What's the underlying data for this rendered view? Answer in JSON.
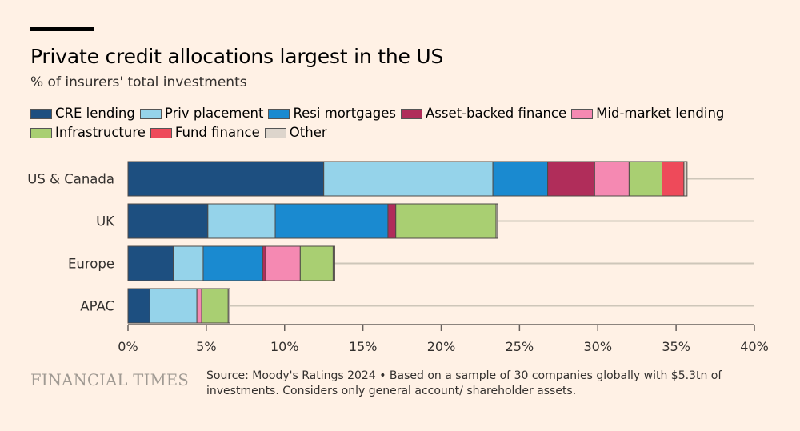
{
  "header": {
    "title": "Private credit allocations largest in the US",
    "subtitle": "% of insurers' total investments"
  },
  "footer": {
    "brand": "FINANCIAL TIMES",
    "source_prefix": "Source: ",
    "source_link": "Moody's Ratings 2024",
    "source_rest": " • Based on a sample of 30 companies globally with $5.3tn of investments. Considers only general account/ shareholder assets."
  },
  "chart_data": {
    "type": "bar",
    "orientation": "horizontal",
    "stacked": true,
    "title": "Private credit allocations largest in the US",
    "subtitle": "% of insurers' total investments",
    "categories": [
      "US & Canada",
      "UK",
      "Europe",
      "APAC"
    ],
    "series": [
      {
        "name": "CRE lending",
        "color": "#1d4f80",
        "values": [
          12.5,
          5.1,
          2.9,
          1.4
        ]
      },
      {
        "name": "Priv placement",
        "color": "#95d3ea",
        "values": [
          10.8,
          4.3,
          1.9,
          3.0
        ]
      },
      {
        "name": "Resi mortgages",
        "color": "#1a8ad0",
        "values": [
          3.5,
          7.2,
          3.8,
          0.0
        ]
      },
      {
        "name": "Asset-backed finance",
        "color": "#b02d5a",
        "values": [
          3.0,
          0.5,
          0.2,
          0.0
        ]
      },
      {
        "name": "Mid-market lending",
        "color": "#f589b2",
        "values": [
          2.2,
          0.0,
          2.2,
          0.3
        ]
      },
      {
        "name": "Infrastructure",
        "color": "#a9cf72",
        "values": [
          2.1,
          6.4,
          2.1,
          1.7
        ]
      },
      {
        "name": "Fund finance",
        "color": "#ee4a5a",
        "values": [
          1.4,
          0.0,
          0.0,
          0.0
        ]
      },
      {
        "name": "Other",
        "color": "#ddd5cc",
        "values": [
          0.2,
          0.1,
          0.1,
          0.1
        ]
      }
    ],
    "xlim": [
      0,
      40
    ],
    "xticks": [
      0,
      5,
      10,
      15,
      20,
      25,
      30,
      35,
      40
    ],
    "xtick_labels": [
      "0%",
      "5%",
      "10%",
      "15%",
      "20%",
      "25%",
      "30%",
      "35%",
      "40%"
    ],
    "xlabel": "",
    "ylabel": "",
    "legend_position": "top"
  }
}
